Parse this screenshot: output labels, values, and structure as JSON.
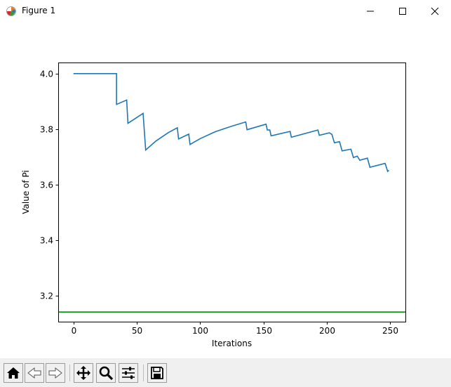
{
  "window": {
    "title": "Figure 1",
    "app_icon": "matplotlib-icon",
    "controls": [
      {
        "name": "minimize-button",
        "icon": "minimize-icon"
      },
      {
        "name": "maximize-button",
        "icon": "maximize-icon"
      },
      {
        "name": "close-button",
        "icon": "close-icon"
      }
    ]
  },
  "toolbar": {
    "buttons": [
      {
        "name": "home-button",
        "icon": "home-icon"
      },
      {
        "name": "back-button",
        "icon": "back-arrow-icon"
      },
      {
        "name": "forward-button",
        "icon": "forward-arrow-icon"
      },
      {
        "name": "pan-button",
        "icon": "pan-icon"
      },
      {
        "name": "zoom-button",
        "icon": "zoom-icon"
      },
      {
        "name": "configure-subplots-button",
        "icon": "sliders-icon"
      },
      {
        "name": "save-button",
        "icon": "save-icon"
      }
    ]
  },
  "chart_data": {
    "type": "line",
    "title": "",
    "xlabel": "Iterations",
    "ylabel": "Value of Pi",
    "xlim": [
      -12,
      262
    ],
    "ylim": [
      3.107,
      4.04
    ],
    "xticks": [
      0,
      50,
      100,
      150,
      200,
      250
    ],
    "yticks": [
      3.2,
      3.4,
      3.6,
      3.8,
      4.0
    ],
    "ytick_labels": [
      "3.2",
      "3.4",
      "3.6",
      "3.8",
      "4.0"
    ],
    "grid": false,
    "legend": "none",
    "series": [
      {
        "color": "#1f77b4",
        "points": [
          [
            0,
            4.0
          ],
          [
            34,
            4.0
          ],
          [
            34,
            3.889
          ],
          [
            42,
            3.905
          ],
          [
            43,
            3.821
          ],
          [
            55,
            3.857
          ],
          [
            57,
            3.725
          ],
          [
            65,
            3.757
          ],
          [
            75,
            3.788
          ],
          [
            82,
            3.805
          ],
          [
            83,
            3.765
          ],
          [
            91,
            3.782
          ],
          [
            92,
            3.745
          ],
          [
            100,
            3.766
          ],
          [
            112,
            3.791
          ],
          [
            125,
            3.811
          ],
          [
            136,
            3.826
          ],
          [
            137,
            3.798
          ],
          [
            152,
            3.818
          ],
          [
            153,
            3.797
          ],
          [
            155,
            3.797
          ],
          [
            156,
            3.776
          ],
          [
            171,
            3.792
          ],
          [
            172,
            3.771
          ],
          [
            193,
            3.797
          ],
          [
            194,
            3.778
          ],
          [
            202,
            3.787
          ],
          [
            204,
            3.781
          ],
          [
            206,
            3.751
          ],
          [
            210,
            3.755
          ],
          [
            212,
            3.722
          ],
          [
            219,
            3.728
          ],
          [
            221,
            3.698
          ],
          [
            224,
            3.703
          ],
          [
            226,
            3.688
          ],
          [
            232,
            3.696
          ],
          [
            234,
            3.663
          ],
          [
            246,
            3.677
          ],
          [
            248,
            3.648
          ],
          [
            249,
            3.652
          ]
        ]
      },
      {
        "color": "#008000",
        "points": [
          [
            -12,
            3.14159
          ],
          [
            262,
            3.14159
          ]
        ]
      }
    ]
  }
}
